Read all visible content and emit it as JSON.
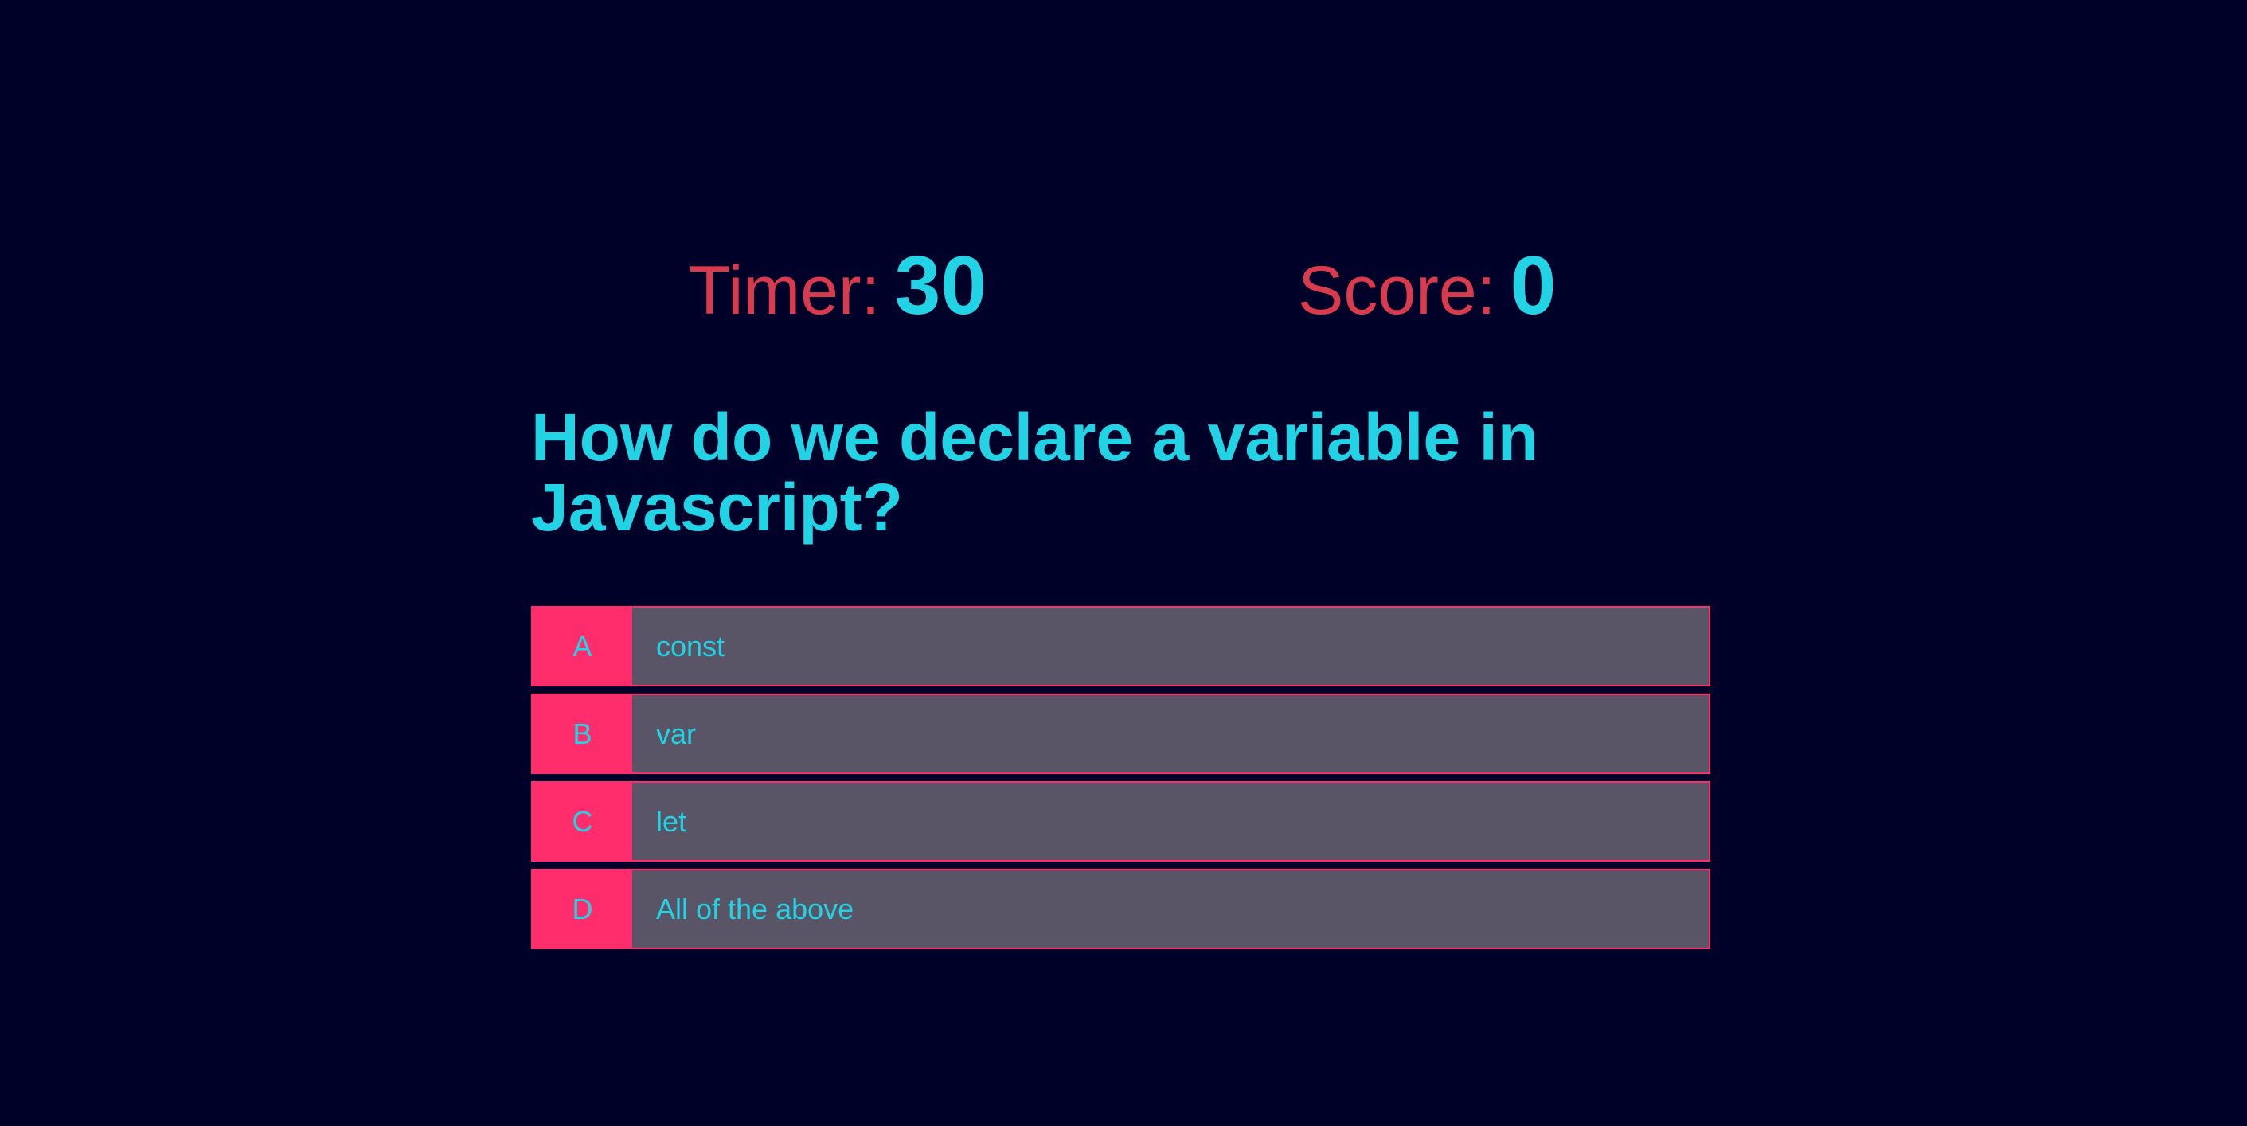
{
  "hud": {
    "timer_label": "Timer:",
    "timer_value": "30",
    "score_label": "Score:",
    "score_value": "0"
  },
  "question": {
    "text": "How do we declare a variable in Javascript?"
  },
  "choices": [
    {
      "prefix": "A",
      "text": "const"
    },
    {
      "prefix": "B",
      "text": "var"
    },
    {
      "prefix": "C",
      "text": "let"
    },
    {
      "prefix": "D",
      "text": "All of the above"
    }
  ],
  "colors": {
    "background": "#000128",
    "accent_cyan": "#22d3e6",
    "label_red": "#d93a4c",
    "prefix_pink": "#ff2d6b",
    "choice_bg": "#5a5566"
  }
}
